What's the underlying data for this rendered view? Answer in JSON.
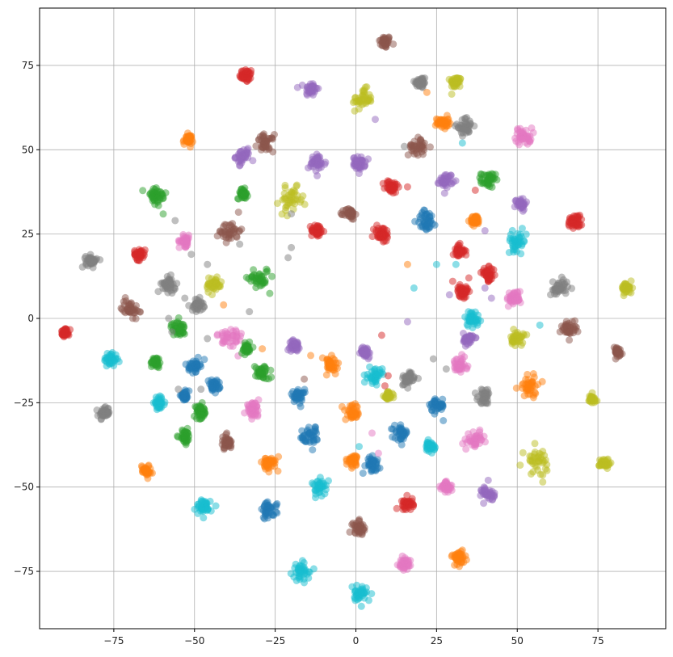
{
  "chart_data": {
    "type": "scatter",
    "title": "",
    "xlabel": "",
    "ylabel": "",
    "xlim": [
      -98,
      96
    ],
    "ylim": [
      -92,
      92
    ],
    "grid": true,
    "legend": "none",
    "x_ticks": [
      -75,
      -50,
      -25,
      0,
      25,
      50,
      75
    ],
    "x_tick_labels": [
      "−75",
      "−50",
      "−25",
      "0",
      "25",
      "50",
      "75"
    ],
    "y_ticks": [
      -75,
      -50,
      -25,
      0,
      25,
      50,
      75
    ],
    "y_tick_labels": [
      "−75",
      "−50",
      "−25",
      "0",
      "25",
      "50",
      "75"
    ],
    "point_alpha": 0.5,
    "palette": {
      "blue": "#1f77b4",
      "orange": "#ff7f0e",
      "green": "#2ca02c",
      "red": "#d62728",
      "purple": "#9467bd",
      "brown": "#8c564b",
      "pink": "#e377c2",
      "gray": "#7f7f7f",
      "olive": "#bcbd22",
      "cyan": "#17becf"
    },
    "clusters": [
      {
        "color": "brown",
        "x": 9,
        "y": 82,
        "size": 2.2
      },
      {
        "color": "red",
        "x": -34,
        "y": 72,
        "size": 2.4
      },
      {
        "color": "purple",
        "x": -14,
        "y": 68,
        "size": 2.4
      },
      {
        "color": "gray",
        "x": 20,
        "y": 70,
        "size": 2.2
      },
      {
        "color": "olive",
        "x": 31,
        "y": 70,
        "size": 2.0
      },
      {
        "color": "olive",
        "x": 2,
        "y": 65,
        "size": 3.6
      },
      {
        "color": "orange",
        "x": 27,
        "y": 58,
        "size": 2.2
      },
      {
        "color": "gray",
        "x": 34,
        "y": 57,
        "size": 3.0
      },
      {
        "color": "pink",
        "x": 52,
        "y": 54,
        "size": 3.0
      },
      {
        "color": "orange",
        "x": -52,
        "y": 53,
        "size": 1.8
      },
      {
        "color": "purple",
        "x": -35,
        "y": 48,
        "size": 2.6
      },
      {
        "color": "brown",
        "x": -28,
        "y": 52,
        "size": 3.0
      },
      {
        "color": "purple",
        "x": -12,
        "y": 46,
        "size": 3.2
      },
      {
        "color": "purple",
        "x": 1,
        "y": 46,
        "size": 2.2
      },
      {
        "color": "brown",
        "x": 19,
        "y": 51,
        "size": 3.2
      },
      {
        "color": "purple",
        "x": 28,
        "y": 41,
        "size": 2.4
      },
      {
        "color": "green",
        "x": 41,
        "y": 41,
        "size": 2.6
      },
      {
        "color": "green",
        "x": -62,
        "y": 36,
        "size": 4.0
      },
      {
        "color": "green",
        "x": -35,
        "y": 37,
        "size": 1.8
      },
      {
        "color": "olive",
        "x": -20,
        "y": 35,
        "size": 4.4
      },
      {
        "color": "red",
        "x": 11,
        "y": 39,
        "size": 2.4
      },
      {
        "color": "purple",
        "x": 51,
        "y": 34,
        "size": 2.0
      },
      {
        "color": "brown",
        "x": -39,
        "y": 26,
        "size": 3.8
      },
      {
        "color": "red",
        "x": -12,
        "y": 26,
        "size": 2.2
      },
      {
        "color": "brown",
        "x": -2,
        "y": 31,
        "size": 2.0
      },
      {
        "color": "red",
        "x": 8,
        "y": 25,
        "size": 3.0
      },
      {
        "color": "blue",
        "x": 22,
        "y": 29,
        "size": 3.6
      },
      {
        "color": "orange",
        "x": 37,
        "y": 29,
        "size": 1.8
      },
      {
        "color": "red",
        "x": 68,
        "y": 29,
        "size": 2.8
      },
      {
        "color": "pink",
        "x": -53,
        "y": 23,
        "size": 2.0
      },
      {
        "color": "red",
        "x": -67,
        "y": 19,
        "size": 2.0
      },
      {
        "color": "gray",
        "x": -82,
        "y": 17,
        "size": 2.0
      },
      {
        "color": "cyan",
        "x": 50,
        "y": 23,
        "size": 3.4
      },
      {
        "color": "red",
        "x": 32,
        "y": 20,
        "size": 2.2
      },
      {
        "color": "red",
        "x": 41,
        "y": 13,
        "size": 2.4
      },
      {
        "color": "olive",
        "x": -44,
        "y": 10,
        "size": 3.0
      },
      {
        "color": "green",
        "x": -30,
        "y": 12,
        "size": 3.8
      },
      {
        "color": "gray",
        "x": -58,
        "y": 10,
        "size": 2.6
      },
      {
        "color": "gray",
        "x": 63,
        "y": 9,
        "size": 3.2
      },
      {
        "color": "olive",
        "x": 84,
        "y": 9,
        "size": 2.0
      },
      {
        "color": "pink",
        "x": 49,
        "y": 6,
        "size": 2.6
      },
      {
        "color": "red",
        "x": 33,
        "y": 8,
        "size": 2.0
      },
      {
        "color": "gray",
        "x": -49,
        "y": 4,
        "size": 2.2
      },
      {
        "color": "brown",
        "x": -70,
        "y": 3,
        "size": 3.0
      },
      {
        "color": "green",
        "x": -55,
        "y": -3,
        "size": 2.6
      },
      {
        "color": "cyan",
        "x": 36,
        "y": 0,
        "size": 2.8
      },
      {
        "color": "pink",
        "x": -39,
        "y": -6,
        "size": 4.6
      },
      {
        "color": "purple",
        "x": 35,
        "y": -6,
        "size": 2.0
      },
      {
        "color": "olive",
        "x": 50,
        "y": -6,
        "size": 2.4
      },
      {
        "color": "brown",
        "x": 66,
        "y": -3,
        "size": 2.8
      },
      {
        "color": "red",
        "x": -90,
        "y": -4,
        "size": 1.4
      },
      {
        "color": "brown",
        "x": 81,
        "y": -10,
        "size": 1.8
      },
      {
        "color": "green",
        "x": -34,
        "y": -9,
        "size": 1.8
      },
      {
        "color": "purple",
        "x": -19,
        "y": -8,
        "size": 1.8
      },
      {
        "color": "purple",
        "x": 3,
        "y": -10,
        "size": 1.8
      },
      {
        "color": "cyan",
        "x": -76,
        "y": -12,
        "size": 2.4
      },
      {
        "color": "green",
        "x": -62,
        "y": -13,
        "size": 2.0
      },
      {
        "color": "blue",
        "x": -50,
        "y": -14,
        "size": 2.0
      },
      {
        "color": "pink",
        "x": 32,
        "y": -14,
        "size": 2.8
      },
      {
        "color": "orange",
        "x": -8,
        "y": -14,
        "size": 3.6
      },
      {
        "color": "green",
        "x": -29,
        "y": -16,
        "size": 2.6
      },
      {
        "color": "cyan",
        "x": 6,
        "y": -17,
        "size": 2.6
      },
      {
        "color": "gray",
        "x": 16,
        "y": -18,
        "size": 2.6
      },
      {
        "color": "orange",
        "x": 54,
        "y": -20,
        "size": 4.0
      },
      {
        "color": "blue",
        "x": -44,
        "y": -20,
        "size": 2.0
      },
      {
        "color": "gray",
        "x": 40,
        "y": -23,
        "size": 2.6
      },
      {
        "color": "olive",
        "x": 73,
        "y": -24,
        "size": 1.8
      },
      {
        "color": "olive",
        "x": 10,
        "y": -23,
        "size": 1.6
      },
      {
        "color": "blue",
        "x": -53,
        "y": -23,
        "size": 1.6
      },
      {
        "color": "blue",
        "x": -18,
        "y": -23,
        "size": 2.4
      },
      {
        "color": "cyan",
        "x": -61,
        "y": -25,
        "size": 1.8
      },
      {
        "color": "pink",
        "x": -32,
        "y": -27,
        "size": 2.4
      },
      {
        "color": "blue",
        "x": 25,
        "y": -26,
        "size": 3.0
      },
      {
        "color": "orange",
        "x": -1,
        "y": -28,
        "size": 2.6
      },
      {
        "color": "green",
        "x": -48,
        "y": -28,
        "size": 2.4
      },
      {
        "color": "gray",
        "x": -78,
        "y": -28,
        "size": 2.0
      },
      {
        "color": "blue",
        "x": -14,
        "y": -35,
        "size": 3.6
      },
      {
        "color": "blue",
        "x": 14,
        "y": -34,
        "size": 2.4
      },
      {
        "color": "green",
        "x": -53,
        "y": -35,
        "size": 2.2
      },
      {
        "color": "brown",
        "x": -40,
        "y": -37,
        "size": 2.2
      },
      {
        "color": "pink",
        "x": 37,
        "y": -36,
        "size": 2.8
      },
      {
        "color": "cyan",
        "x": 23,
        "y": -38,
        "size": 1.6
      },
      {
        "color": "olive",
        "x": 56,
        "y": -42,
        "size": 4.4
      },
      {
        "color": "orange",
        "x": -27,
        "y": -43,
        "size": 2.6
      },
      {
        "color": "orange",
        "x": -1,
        "y": -42,
        "size": 1.8
      },
      {
        "color": "blue",
        "x": 5,
        "y": -43,
        "size": 2.8
      },
      {
        "color": "orange",
        "x": -65,
        "y": -45,
        "size": 1.8
      },
      {
        "color": "olive",
        "x": 77,
        "y": -43,
        "size": 1.8
      },
      {
        "color": "cyan",
        "x": -11,
        "y": -50,
        "size": 2.8
      },
      {
        "color": "pink",
        "x": 28,
        "y": -50,
        "size": 2.0
      },
      {
        "color": "purple",
        "x": 41,
        "y": -52,
        "size": 2.4
      },
      {
        "color": "red",
        "x": 16,
        "y": -55,
        "size": 2.2
      },
      {
        "color": "cyan",
        "x": -47,
        "y": -56,
        "size": 2.8
      },
      {
        "color": "blue",
        "x": -27,
        "y": -57,
        "size": 3.0
      },
      {
        "color": "brown",
        "x": 1,
        "y": -62,
        "size": 2.6
      },
      {
        "color": "orange",
        "x": 32,
        "y": -71,
        "size": 2.6
      },
      {
        "color": "pink",
        "x": 15,
        "y": -73,
        "size": 2.2
      },
      {
        "color": "cyan",
        "x": -17,
        "y": -75,
        "size": 3.2
      },
      {
        "color": "cyan",
        "x": 1,
        "y": -82,
        "size": 2.8
      }
    ],
    "outliers": [
      {
        "color": "orange",
        "x": 22,
        "y": 67
      },
      {
        "color": "purple",
        "x": 6,
        "y": 59
      },
      {
        "color": "cyan",
        "x": 33,
        "y": 52
      },
      {
        "color": "gray",
        "x": 15,
        "y": 51
      },
      {
        "color": "purple",
        "x": 1,
        "y": 43
      },
      {
        "color": "red",
        "x": 16,
        "y": 39
      },
      {
        "color": "red",
        "x": 37,
        "y": 38
      },
      {
        "color": "gray",
        "x": -20,
        "y": 31
      },
      {
        "color": "gray",
        "x": -56,
        "y": 29
      },
      {
        "color": "purple",
        "x": 40,
        "y": 26
      },
      {
        "color": "gray",
        "x": -36,
        "y": 22
      },
      {
        "color": "gray",
        "x": -20,
        "y": 21
      },
      {
        "color": "gray",
        "x": -51,
        "y": 19
      },
      {
        "color": "gray",
        "x": -46,
        "y": 16
      },
      {
        "color": "gray",
        "x": -21,
        "y": 18
      },
      {
        "color": "orange",
        "x": 16,
        "y": 16
      },
      {
        "color": "cyan",
        "x": 25,
        "y": 16
      },
      {
        "color": "cyan",
        "x": 31,
        "y": 16
      },
      {
        "color": "red",
        "x": 35,
        "y": 12
      },
      {
        "color": "red",
        "x": 30,
        "y": 11
      },
      {
        "color": "cyan",
        "x": 18,
        "y": 9
      },
      {
        "color": "purple",
        "x": 40,
        "y": 9
      },
      {
        "color": "purple",
        "x": 29,
        "y": 7
      },
      {
        "color": "purple",
        "x": 42,
        "y": 6
      },
      {
        "color": "gray",
        "x": -53,
        "y": 6
      },
      {
        "color": "orange",
        "x": -41,
        "y": 4
      },
      {
        "color": "gray",
        "x": -33,
        "y": 2
      },
      {
        "color": "brown",
        "x": -67,
        "y": 2
      },
      {
        "color": "gray",
        "x": -58,
        "y": 0
      },
      {
        "color": "gray",
        "x": -57,
        "y": -4
      },
      {
        "color": "purple",
        "x": 16,
        "y": -1
      },
      {
        "color": "cyan",
        "x": 57,
        "y": -2
      },
      {
        "color": "red",
        "x": 8,
        "y": -5
      },
      {
        "color": "gray",
        "x": -46,
        "y": -6
      },
      {
        "color": "green",
        "x": -33,
        "y": -7
      },
      {
        "color": "orange",
        "x": -29,
        "y": -9
      },
      {
        "color": "orange",
        "x": -14,
        "y": -11
      },
      {
        "color": "gray",
        "x": 24,
        "y": -12
      },
      {
        "color": "gray",
        "x": 28,
        "y": -15
      },
      {
        "color": "red",
        "x": 10,
        "y": -17
      },
      {
        "color": "brown",
        "x": -16,
        "y": -18
      },
      {
        "color": "red",
        "x": 9,
        "y": -20
      },
      {
        "color": "gray",
        "x": -55,
        "y": -21
      },
      {
        "color": "gray",
        "x": -48,
        "y": -21
      },
      {
        "color": "pink",
        "x": 5,
        "y": -34
      },
      {
        "color": "cyan",
        "x": 1,
        "y": -38
      },
      {
        "color": "brown",
        "x": -40,
        "y": -34
      },
      {
        "color": "pink",
        "x": 7,
        "y": -40
      },
      {
        "color": "purple",
        "x": 41,
        "y": -48
      },
      {
        "color": "orange",
        "x": -24,
        "y": -41
      }
    ]
  }
}
